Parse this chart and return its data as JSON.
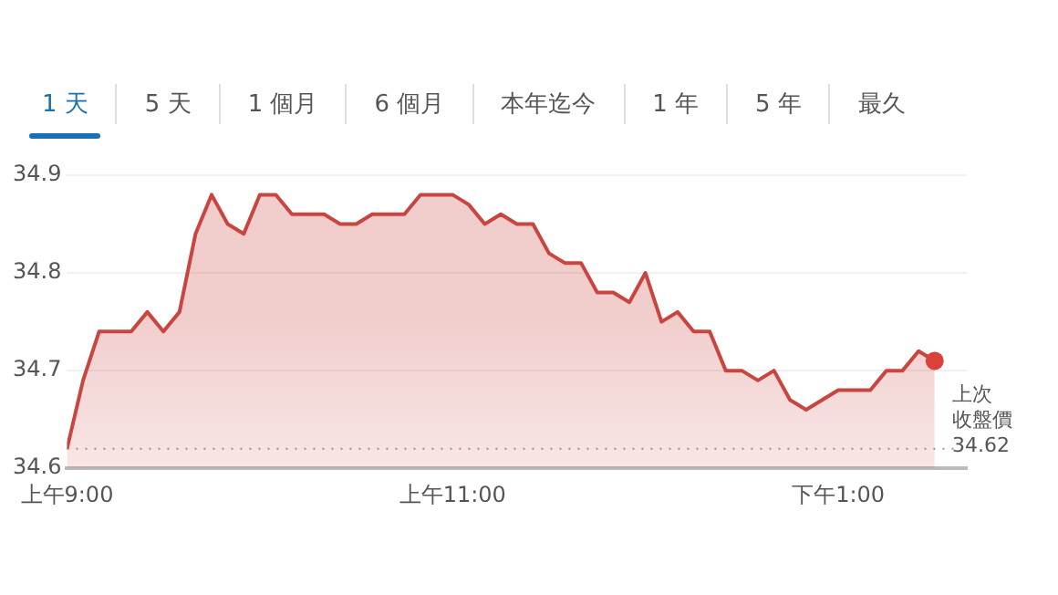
{
  "chart_data": {
    "type": "area",
    "annotations": [
      "1 天",
      "5 天",
      "1 個月",
      "6 個月",
      "本年迄今",
      "1 年",
      "5 年",
      "最久"
    ],
    "categories": [
      "上午9:00",
      null,
      null,
      null,
      null,
      null,
      null,
      null,
      null,
      null,
      null,
      null,
      null,
      null,
      null,
      null,
      null,
      null,
      null,
      null,
      null,
      null,
      null,
      null,
      "上午11:00",
      null,
      null,
      null,
      null,
      null,
      null,
      null,
      null,
      null,
      null,
      null,
      null,
      null,
      null,
      null,
      null,
      null,
      null,
      null,
      null,
      null,
      null,
      null,
      "下午1:00",
      null,
      null,
      null,
      null,
      null,
      null
    ],
    "series": [
      {
        "color": "#c9453f",
        "values": [
          34.62,
          34.69,
          34.74,
          34.74,
          34.74,
          34.76,
          34.74,
          34.76,
          34.84,
          34.88,
          34.85,
          34.84,
          34.88,
          34.88,
          34.86,
          34.86,
          34.86,
          34.85,
          34.85,
          34.86,
          34.86,
          34.86,
          34.88,
          34.88,
          34.88,
          34.87,
          34.85,
          34.86,
          34.85,
          34.85,
          34.82,
          34.81,
          34.81,
          34.78,
          34.78,
          34.77,
          34.8,
          34.75,
          34.76,
          34.74,
          34.74,
          34.7,
          34.7,
          34.69,
          34.7,
          34.67,
          34.66,
          34.67,
          34.68,
          34.68,
          34.68,
          34.7,
          34.7,
          34.72,
          34.71
        ]
      },
      {
        "type": "scatter",
        "color": "#d9413a",
        "marker": "circle",
        "values": [
          null,
          null,
          null,
          null,
          null,
          null,
          null,
          null,
          null,
          null,
          null,
          null,
          null,
          null,
          null,
          null,
          null,
          null,
          null,
          null,
          null,
          null,
          null,
          null,
          null,
          null,
          null,
          null,
          null,
          null,
          null,
          null,
          null,
          null,
          null,
          null,
          null,
          null,
          null,
          null,
          null,
          null,
          null,
          null,
          null,
          null,
          null,
          null,
          null,
          null,
          null,
          null,
          null,
          null,
          34.71
        ]
      }
    ],
    "ylim": [
      34.6,
      34.9
    ],
    "yticks": [
      34.6,
      34.7,
      34.8,
      34.9
    ],
    "grid": "y",
    "ref_lines": [
      {
        "axis": "y",
        "value": 34.62,
        "label": "上次收盤價 34.62",
        "color": "#999999",
        "line_style": "dotted"
      }
    ]
  }
}
